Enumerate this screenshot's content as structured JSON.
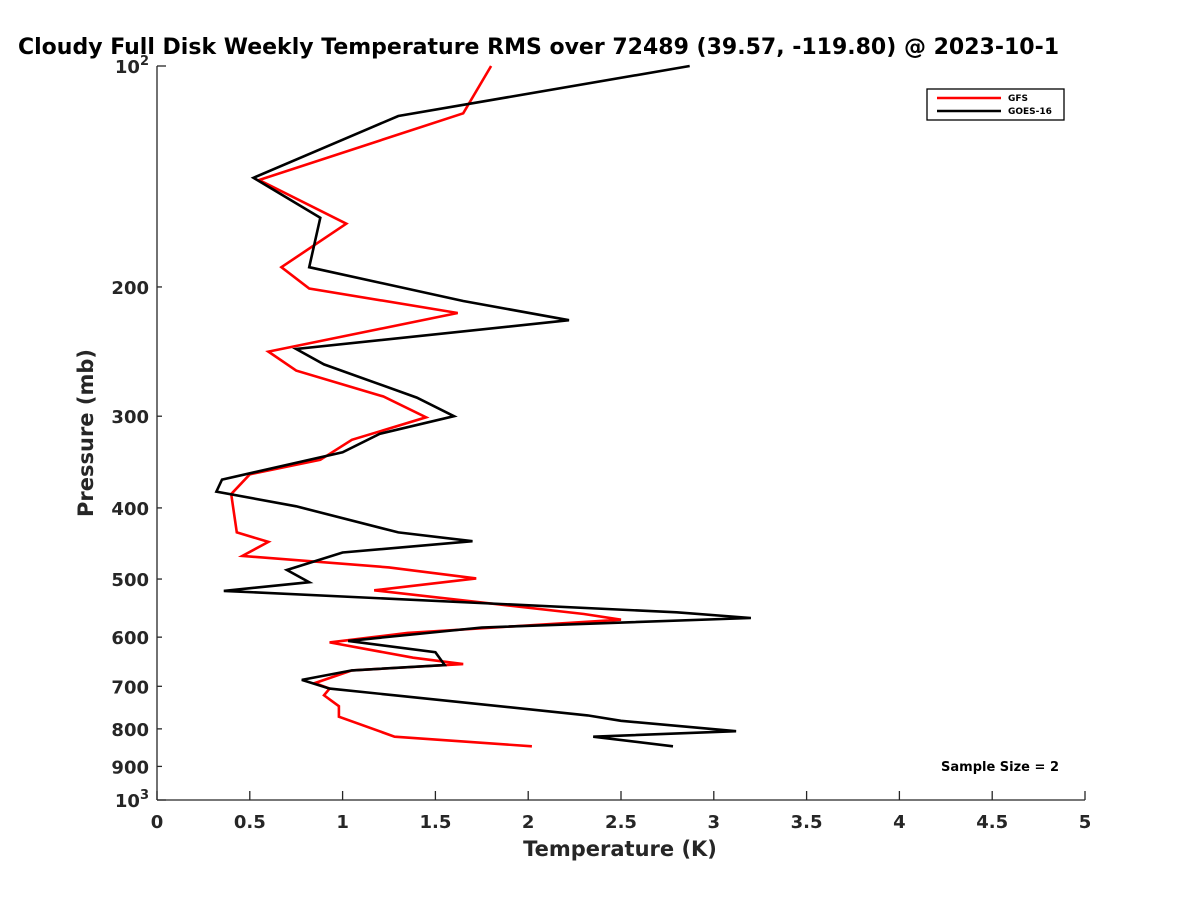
{
  "chart_data": {
    "type": "line",
    "title": "Cloudy Full Disk Weekly Temperature RMS over 72489 (39.57, -119.80) @ 2023-10-1",
    "xlabel": "Temperature (K)",
    "ylabel": "Pressure (mb)",
    "xlim": [
      0,
      5
    ],
    "ylim": [
      100,
      1000
    ],
    "yscale": "log",
    "y_reversed": true,
    "grid": false,
    "legend_position": "top-right",
    "x_ticks": [
      0,
      0.5,
      1,
      1.5,
      2,
      2.5,
      3,
      3.5,
      4,
      4.5,
      5
    ],
    "x_tick_labels": [
      "0",
      "0.5",
      "1",
      "1.5",
      "2",
      "2.5",
      "3",
      "3.5",
      "4",
      "4.5",
      "5"
    ],
    "y_ticks": [
      100,
      200,
      300,
      400,
      500,
      600,
      700,
      800,
      900,
      1000
    ],
    "y_tick_labels": [
      {
        "base": "10",
        "exp": "2"
      },
      {
        "base": "200",
        "exp": ""
      },
      {
        "base": "300",
        "exp": ""
      },
      {
        "base": "400",
        "exp": ""
      },
      {
        "base": "500",
        "exp": ""
      },
      {
        "base": "600",
        "exp": ""
      },
      {
        "base": "700",
        "exp": ""
      },
      {
        "base": "800",
        "exp": ""
      },
      {
        "base": "900",
        "exp": ""
      },
      {
        "base": "10",
        "exp": "3"
      }
    ],
    "annotation": "Sample Size = 2",
    "series": [
      {
        "name": "GFS",
        "color": "#ff0000",
        "points": [
          [
            1.8,
            100
          ],
          [
            1.65,
            116
          ],
          [
            0.55,
            143
          ],
          [
            1.02,
            164
          ],
          [
            0.67,
            188
          ],
          [
            0.82,
            201
          ],
          [
            1.62,
            217
          ],
          [
            0.6,
            245
          ],
          [
            0.75,
            260
          ],
          [
            1.22,
            282
          ],
          [
            1.45,
            301
          ],
          [
            1.05,
            323
          ],
          [
            0.88,
            344
          ],
          [
            0.5,
            360
          ],
          [
            0.4,
            383
          ],
          [
            0.43,
            432
          ],
          [
            0.6,
            445
          ],
          [
            0.46,
            465
          ],
          [
            1.25,
            482
          ],
          [
            1.72,
            499
          ],
          [
            1.17,
            518
          ],
          [
            2.3,
            558
          ],
          [
            2.5,
            568
          ],
          [
            1.35,
            592
          ],
          [
            0.93,
            610
          ],
          [
            1.38,
            640
          ],
          [
            1.65,
            653
          ],
          [
            1.05,
            666
          ],
          [
            0.85,
            693
          ],
          [
            0.93,
            705
          ],
          [
            0.9,
            720
          ],
          [
            0.98,
            745
          ],
          [
            0.98,
            770
          ],
          [
            1.28,
            820
          ],
          [
            2.02,
            845
          ]
        ]
      },
      {
        "name": "GOES-16",
        "color": "#000000",
        "points": [
          [
            2.87,
            100
          ],
          [
            1.3,
            117
          ],
          [
            0.52,
            142
          ],
          [
            0.88,
            161
          ],
          [
            0.82,
            188
          ],
          [
            1.65,
            209
          ],
          [
            2.22,
            222
          ],
          [
            0.75,
            243
          ],
          [
            0.9,
            255
          ],
          [
            1.4,
            283
          ],
          [
            1.6,
            300
          ],
          [
            1.2,
            317
          ],
          [
            1.0,
            336
          ],
          [
            0.35,
            366
          ],
          [
            0.32,
            380
          ],
          [
            0.75,
            398
          ],
          [
            1.3,
            432
          ],
          [
            1.7,
            444
          ],
          [
            1.0,
            460
          ],
          [
            0.7,
            486
          ],
          [
            0.82,
            505
          ],
          [
            0.36,
            519
          ],
          [
            2.8,
            555
          ],
          [
            3.2,
            565
          ],
          [
            1.75,
            582
          ],
          [
            1.03,
            607
          ],
          [
            1.5,
            629
          ],
          [
            1.55,
            655
          ],
          [
            1.05,
            666
          ],
          [
            0.78,
            686
          ],
          [
            0.93,
            705
          ],
          [
            1.28,
            720
          ],
          [
            2.32,
            767
          ],
          [
            2.5,
            780
          ],
          [
            3.12,
            806
          ],
          [
            2.35,
            820
          ],
          [
            2.78,
            845
          ]
        ]
      }
    ]
  }
}
